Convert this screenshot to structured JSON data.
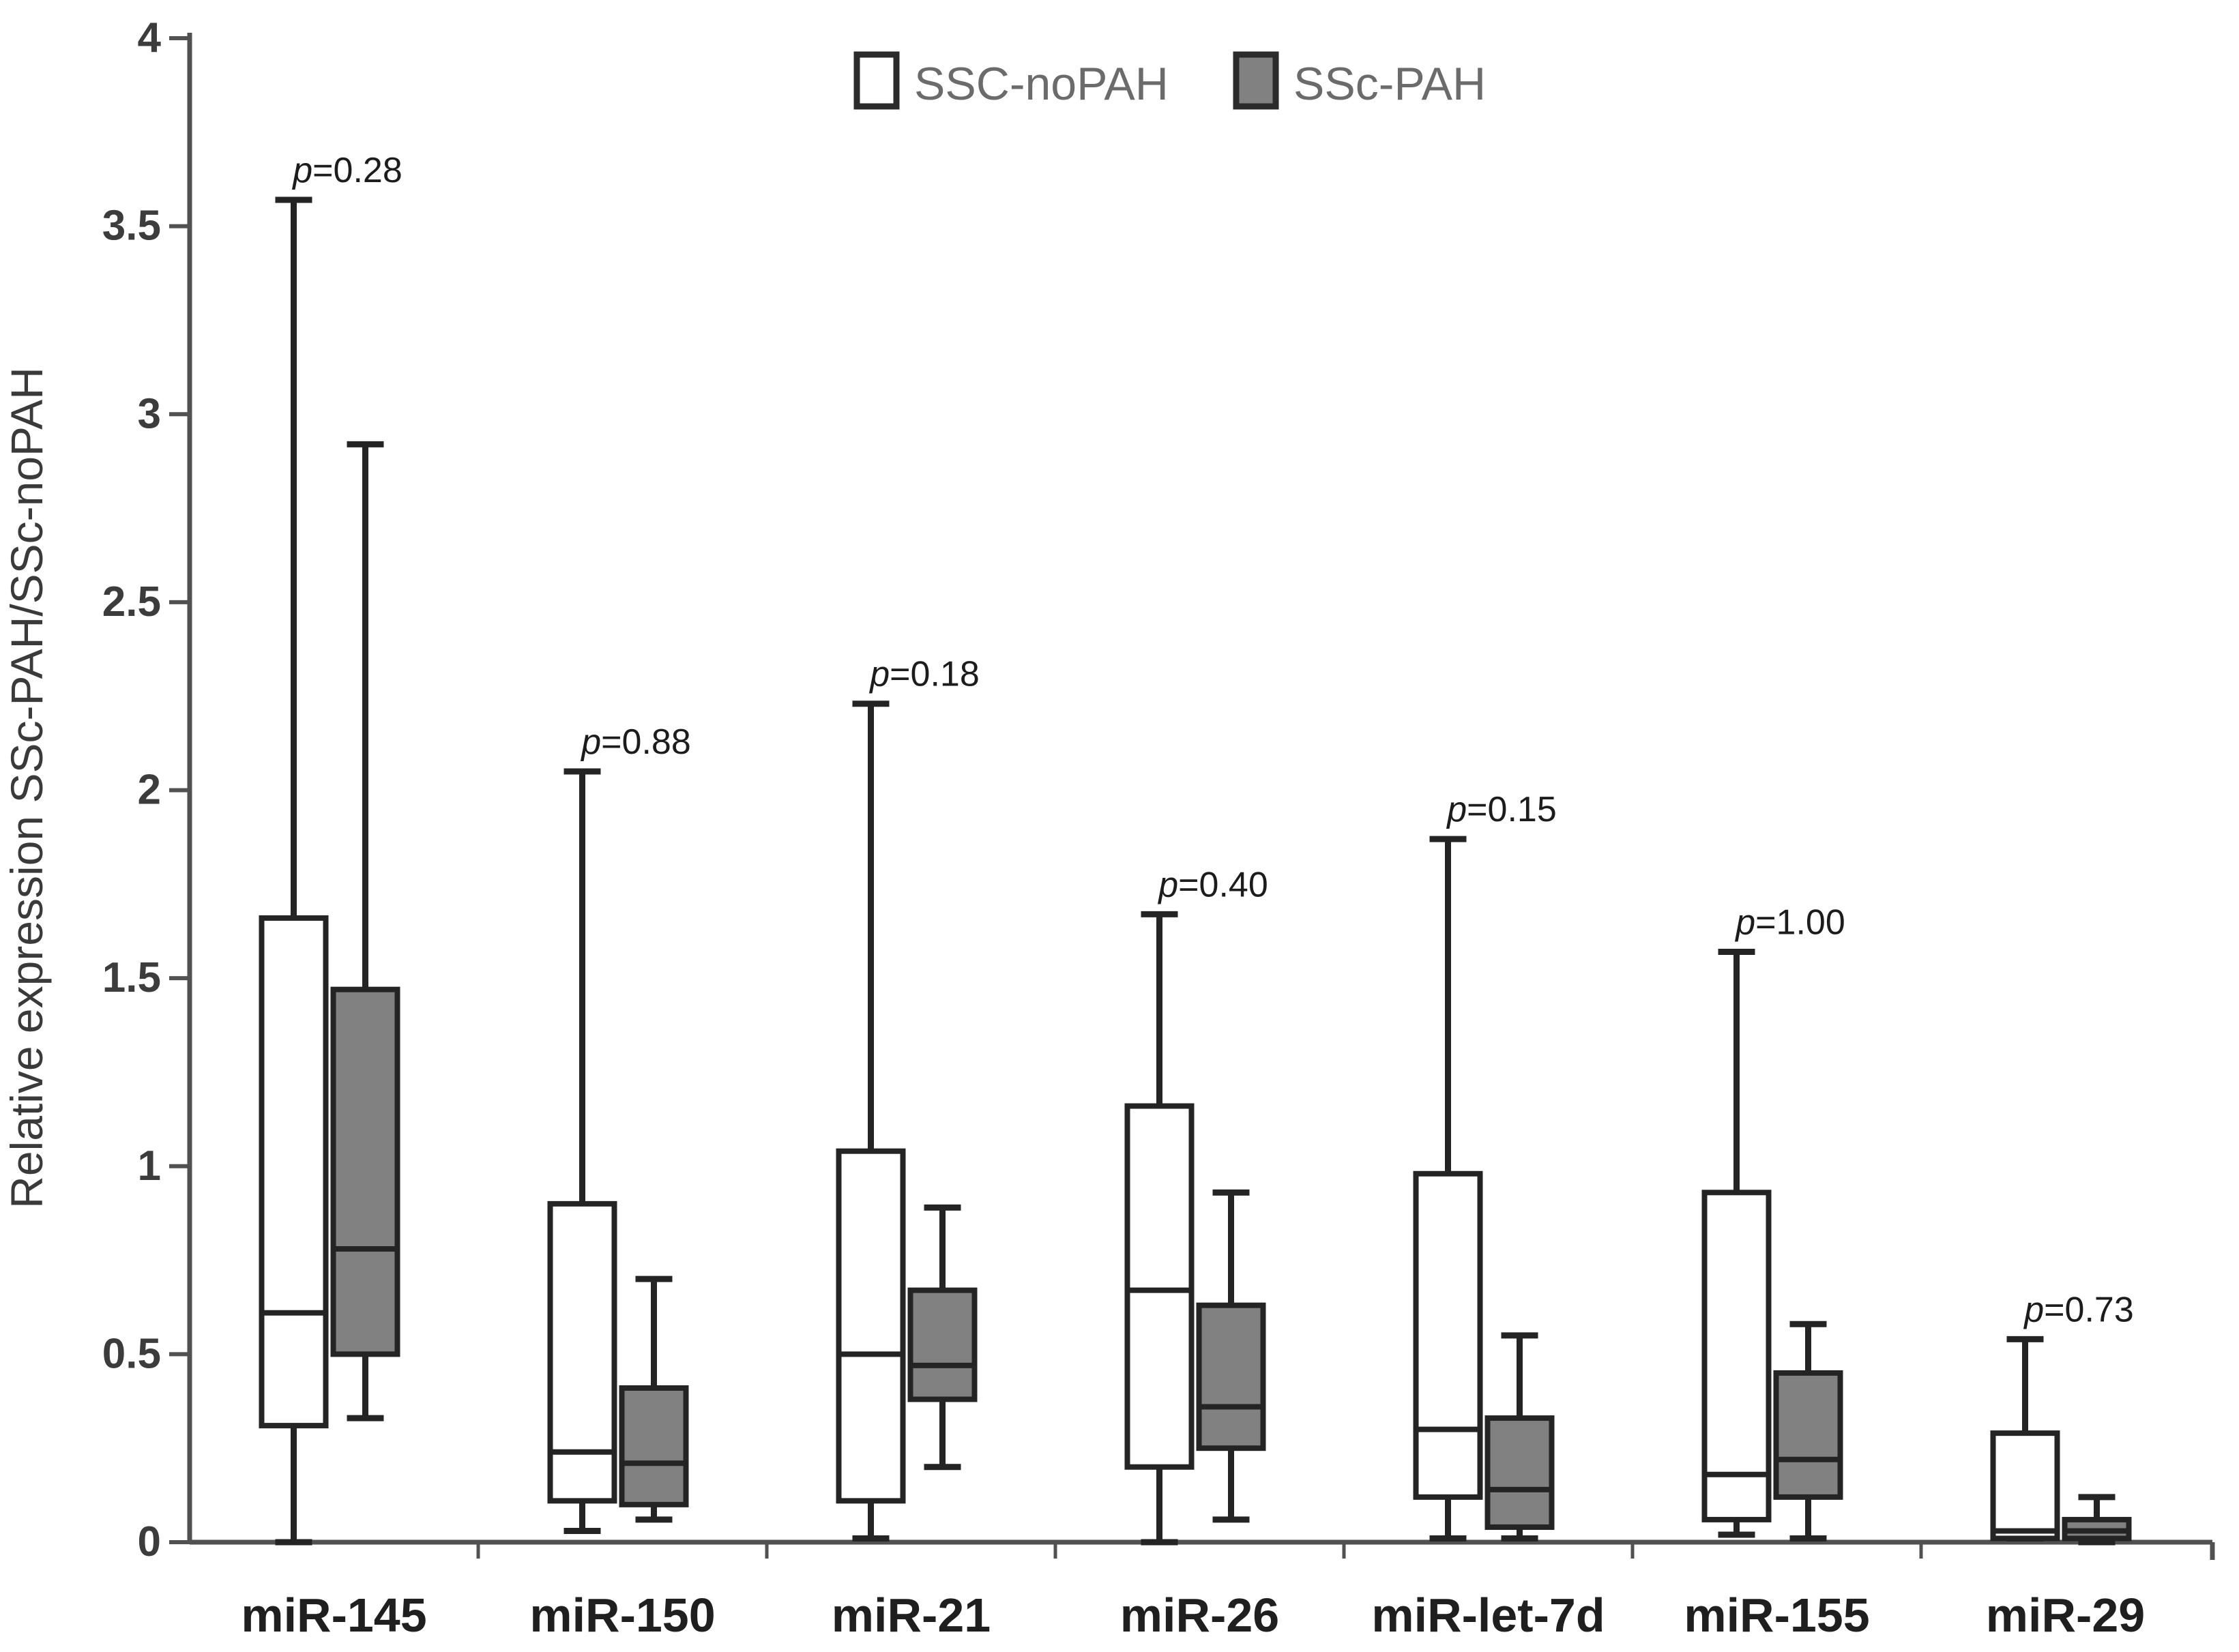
{
  "figure": {
    "background": "#ffffff"
  },
  "legend": {
    "items": [
      {
        "label": "SSC-noPAH",
        "fill": "#ffffff"
      },
      {
        "label": "SSc-PAH",
        "fill": "#818181"
      }
    ]
  },
  "chart_data": {
    "type": "boxplot",
    "title": "",
    "ylabel": "Relative expression SSc-PAH/SSc-noPAH",
    "xlabel": "",
    "ylim": [
      0,
      4
    ],
    "yticks": [
      0,
      0.5,
      1,
      1.5,
      2,
      2.5,
      3,
      3.5,
      4
    ],
    "ytick_labels": [
      "0",
      "0.5",
      "1",
      "1.5",
      "2",
      "2.5",
      "3",
      "3.5",
      "4"
    ],
    "grid": false,
    "legend_position": "top-center",
    "categories": [
      "miR-145",
      "miR-150",
      "miR-21",
      "miR-26",
      "miR-let-7d",
      "miR-155",
      "miR-29"
    ],
    "series": [
      {
        "name": "SSC-noPAH",
        "fill": "#ffffff",
        "boxes": [
          {
            "min": 0.0,
            "q1": 0.31,
            "median": 0.61,
            "q3": 1.66,
            "max": 3.57
          },
          {
            "min": 0.03,
            "q1": 0.11,
            "median": 0.24,
            "q3": 0.9,
            "max": 2.05
          },
          {
            "min": 0.01,
            "q1": 0.11,
            "median": 0.5,
            "q3": 1.04,
            "max": 2.23
          },
          {
            "min": 0.0,
            "q1": 0.2,
            "median": 0.67,
            "q3": 1.16,
            "max": 1.67
          },
          {
            "min": 0.01,
            "q1": 0.12,
            "median": 0.3,
            "q3": 0.98,
            "max": 1.87
          },
          {
            "min": 0.02,
            "q1": 0.06,
            "median": 0.18,
            "q3": 0.93,
            "max": 1.57
          },
          {
            "min": 0.01,
            "q1": 0.01,
            "median": 0.03,
            "q3": 0.29,
            "max": 0.54
          }
        ]
      },
      {
        "name": "SSc-PAH",
        "fill": "#818181",
        "boxes": [
          {
            "min": 0.33,
            "q1": 0.5,
            "median": 0.78,
            "q3": 1.47,
            "max": 2.92
          },
          {
            "min": 0.06,
            "q1": 0.1,
            "median": 0.21,
            "q3": 0.41,
            "max": 0.7
          },
          {
            "min": 0.2,
            "q1": 0.38,
            "median": 0.47,
            "q3": 0.67,
            "max": 0.89
          },
          {
            "min": 0.06,
            "q1": 0.25,
            "median": 0.36,
            "q3": 0.63,
            "max": 0.93
          },
          {
            "min": 0.01,
            "q1": 0.04,
            "median": 0.14,
            "q3": 0.33,
            "max": 0.55
          },
          {
            "min": 0.01,
            "q1": 0.12,
            "median": 0.22,
            "q3": 0.45,
            "max": 0.58
          },
          {
            "min": 0.0,
            "q1": 0.01,
            "median": 0.03,
            "q3": 0.06,
            "max": 0.12
          }
        ]
      }
    ],
    "p_values": [
      "p=0.28",
      "p=0.88",
      "p=0.18",
      "p=0.40",
      "p=0.15",
      "p=1.00",
      "p=0.73"
    ],
    "colors": {
      "box_stroke": "#242424",
      "gray_fill": "#818181",
      "white_fill": "#ffffff",
      "axis": "#515151",
      "tick_text": "#3c3c3c",
      "category_text": "#1f1f1f",
      "legend_text": "#6b6b6b",
      "p_text": "#1c1c1c",
      "ylabel_text": "#3a3a3a"
    }
  }
}
